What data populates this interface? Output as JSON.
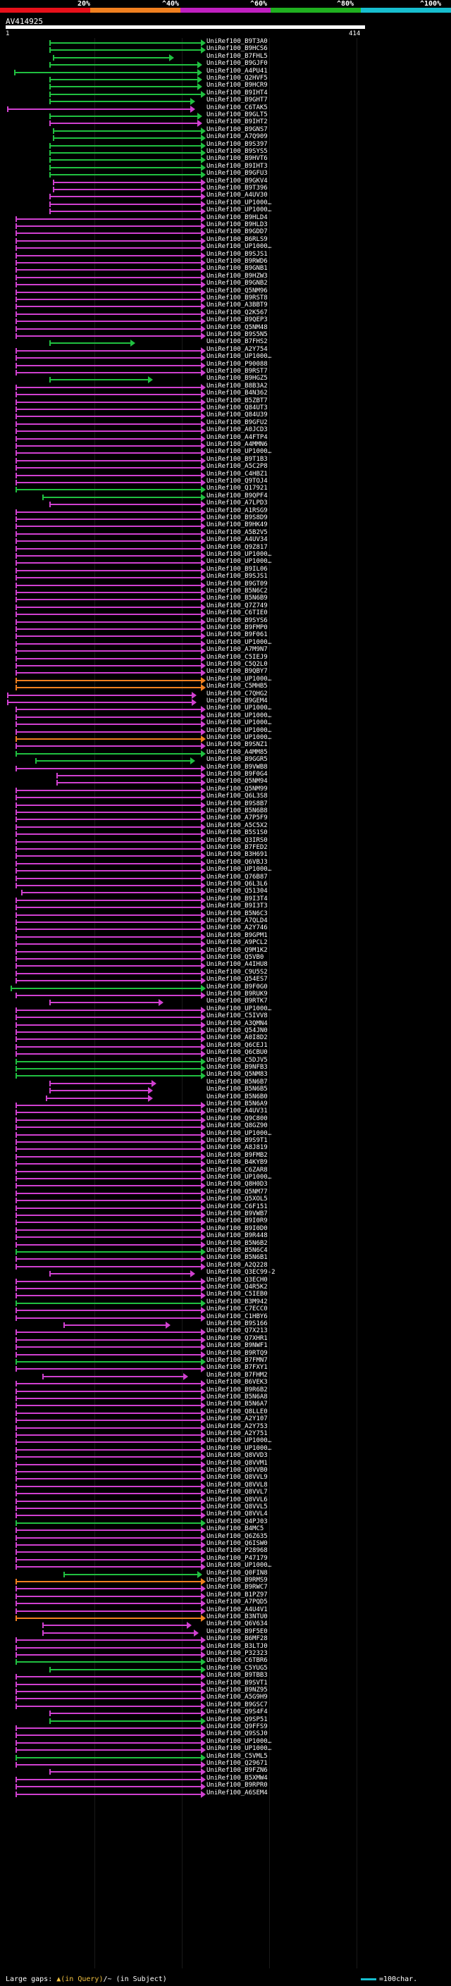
{
  "legend": {
    "labels": [
      "20%",
      "^40%",
      "^60%",
      "^80%",
      "^100%"
    ],
    "colors": [
      "#e8101a",
      "#f08020",
      "#c020c0",
      "#20b020",
      "#17becf"
    ]
  },
  "query": {
    "name": "AV414925",
    "start": "1",
    "end": "414"
  },
  "footer": {
    "left_prefix": "Large gaps: ",
    "query_gap": "▲(in Query)",
    "separator": "/",
    "subject_gap": "~ (in Subject)",
    "right": "=100char."
  },
  "hits": [
    {
      "label": "UniRef100_B9T3A0",
      "color": "#20c040"
    },
    {
      "label": "UniRef100_B9HCS6",
      "color": "#20c040"
    },
    {
      "label": "UniRef100_B7FHL5",
      "color": "#20c040"
    },
    {
      "label": "UniRef100_B9GJF0",
      "color": "#20c040"
    },
    {
      "label": "UniRef100_A4PU41",
      "color": "#20c040"
    },
    {
      "label": "UniRef100_Q2HVF5",
      "color": "#20c040"
    },
    {
      "label": "UniRef100_B9HCR9",
      "color": "#20c040"
    },
    {
      "label": "UniRef100_B9IHT4",
      "color": "#20c040"
    },
    {
      "label": "UniRef100_B9GHT7",
      "color": "#20c040"
    },
    {
      "label": "UniRef100_C6TAK5",
      "color": "#d040d0"
    },
    {
      "label": "UniRef100_B9GLT5",
      "color": "#20c040"
    },
    {
      "label": "UniRef100_B9IHT2",
      "color": "#d040d0"
    },
    {
      "label": "UniRef100_B9GNS7",
      "color": "#20c040"
    },
    {
      "label": "UniRef100_A7Q909",
      "color": "#20c040"
    },
    {
      "label": "UniRef100_B9S397",
      "color": "#20c040"
    },
    {
      "label": "UniRef100_B9SYS5",
      "color": "#20c040"
    },
    {
      "label": "UniRef100_B9HVT6",
      "color": "#20c040"
    },
    {
      "label": "UniRef100_B9IHT3",
      "color": "#20c040"
    },
    {
      "label": "UniRef100_B9GFU3",
      "color": "#20c040"
    },
    {
      "label": "UniRef100_B9GKV4",
      "color": "#d040d0"
    },
    {
      "label": "UniRef100_B9T396",
      "color": "#d040d0"
    },
    {
      "label": "UniRef100_A4UV30",
      "color": "#d040d0"
    },
    {
      "label": "UniRef100_UP1000…",
      "color": "#d040d0"
    },
    {
      "label": "UniRef100_UP1000…",
      "color": "#d040d0"
    },
    {
      "label": "UniRef100_B9HLD4",
      "color": "#d040d0"
    },
    {
      "label": "UniRef100_B9HLD3",
      "color": "#d040d0"
    },
    {
      "label": "UniRef100_B9GDD7",
      "color": "#d040d0"
    },
    {
      "label": "UniRef100_B6RLS9",
      "color": "#d040d0"
    },
    {
      "label": "UniRef100_UP1000…",
      "color": "#d040d0"
    },
    {
      "label": "UniRef100_B9SJS1",
      "color": "#d040d0"
    },
    {
      "label": "UniRef100_B9RWD6",
      "color": "#d040d0"
    },
    {
      "label": "UniRef100_B9GNB1",
      "color": "#d040d0"
    },
    {
      "label": "UniRef100_B9HZW3",
      "color": "#d040d0"
    },
    {
      "label": "UniRef100_B9GNB2",
      "color": "#d040d0"
    },
    {
      "label": "UniRef100_Q5NM96",
      "color": "#d040d0"
    },
    {
      "label": "UniRef100_B9RST8",
      "color": "#d040d0"
    },
    {
      "label": "UniRef100_A3BBT9",
      "color": "#d040d0"
    },
    {
      "label": "UniRef100_Q2K567",
      "color": "#d040d0"
    },
    {
      "label": "UniRef100_B9QEP3",
      "color": "#d040d0"
    },
    {
      "label": "UniRef100_Q5NM48",
      "color": "#d040d0"
    },
    {
      "label": "UniRef100_B9S5N5",
      "color": "#d040d0"
    },
    {
      "label": "UniRef100_B7FHS2",
      "color": "#20c040"
    },
    {
      "label": "UniRef100_A2Y754",
      "color": "#d040d0"
    },
    {
      "label": "UniRef100_UP1000…",
      "color": "#d040d0"
    },
    {
      "label": "UniRef100_P90088",
      "color": "#d040d0"
    },
    {
      "label": "UniRef100_B9RST7",
      "color": "#d040d0"
    },
    {
      "label": "UniRef100_B9HGZ5",
      "color": "#20c040"
    },
    {
      "label": "UniRef100_B8B3A2",
      "color": "#d040d0"
    },
    {
      "label": "UniRef100_B4N362",
      "color": "#d040d0"
    },
    {
      "label": "UniRef100_B5ZBT7",
      "color": "#d040d0"
    },
    {
      "label": "UniRef100_Q84UT3",
      "color": "#d040d0"
    },
    {
      "label": "UniRef100_Q84U39",
      "color": "#d040d0"
    },
    {
      "label": "UniRef100_B9GFU2",
      "color": "#d040d0"
    },
    {
      "label": "UniRef100_A0JCD3",
      "color": "#d040d0"
    },
    {
      "label": "UniRef100_A4FTP4",
      "color": "#d040d0"
    },
    {
      "label": "UniRef100_A4MMN6",
      "color": "#d040d0"
    },
    {
      "label": "UniRef100_UP1000…",
      "color": "#d040d0"
    },
    {
      "label": "UniRef100_B9T1B3",
      "color": "#d040d0"
    },
    {
      "label": "UniRef100_A5C2P8",
      "color": "#d040d0"
    },
    {
      "label": "UniRef100_C4HBZ1",
      "color": "#d040d0"
    },
    {
      "label": "UniRef100_Q9TOJ4",
      "color": "#d040d0"
    },
    {
      "label": "UniRef100_Q17921",
      "color": "#20c040"
    },
    {
      "label": "UniRef100_B9QPF4",
      "color": "#20c040"
    },
    {
      "label": "UniRef100_A7LPD3",
      "color": "#d040d0"
    },
    {
      "label": "UniRef100_A1RSG9",
      "color": "#d040d0"
    },
    {
      "label": "UniRef100_B9S8D9",
      "color": "#d040d0"
    },
    {
      "label": "UniRef100_B9HK49",
      "color": "#d040d0"
    },
    {
      "label": "UniRef100_A5B2V5",
      "color": "#d040d0"
    },
    {
      "label": "UniRef100_A4UV34",
      "color": "#d040d0"
    },
    {
      "label": "UniRef100_Q9Z817",
      "color": "#d040d0"
    },
    {
      "label": "UniRef100_UP1000…",
      "color": "#d040d0"
    },
    {
      "label": "UniRef100_UP1000…",
      "color": "#d040d0"
    },
    {
      "label": "UniRef100_B9IL06",
      "color": "#d040d0"
    },
    {
      "label": "UniRef100_B9SJS1",
      "color": "#d040d0"
    },
    {
      "label": "UniRef100_B9GT09",
      "color": "#d040d0"
    },
    {
      "label": "UniRef100_B5N6C2",
      "color": "#d040d0"
    },
    {
      "label": "UniRef100_B5N6B9",
      "color": "#d040d0"
    },
    {
      "label": "UniRef100_Q7Z749",
      "color": "#d040d0"
    },
    {
      "label": "UniRef100_C6TIE0",
      "color": "#d040d0"
    },
    {
      "label": "UniRef100_B9SYS6",
      "color": "#d040d0"
    },
    {
      "label": "UniRef100_B9FMP0",
      "color": "#d040d0"
    },
    {
      "label": "UniRef100_B9F061",
      "color": "#d040d0"
    },
    {
      "label": "UniRef100_UP1000…",
      "color": "#d040d0"
    },
    {
      "label": "UniRef100_A7M9N7",
      "color": "#d040d0"
    },
    {
      "label": "UniRef100_C5IEJ9",
      "color": "#d040d0"
    },
    {
      "label": "UniRef100_C5Q2L0",
      "color": "#d040d0"
    },
    {
      "label": "UniRef100_B9QBY7",
      "color": "#d040d0"
    },
    {
      "label": "UniRef100_UP1000…",
      "color": "#f08020"
    },
    {
      "label": "UniRef100_C5MHB5",
      "color": "#f08020"
    },
    {
      "label": "UniRef100_C7QHG2",
      "color": "#d040d0"
    },
    {
      "label": "UniRef100_B9GEM4",
      "color": "#d040d0"
    },
    {
      "label": "UniRef100_UP1000…",
      "color": "#d040d0"
    },
    {
      "label": "UniRef100_UP1000…",
      "color": "#d040d0"
    },
    {
      "label": "UniRef100_UP1000…",
      "color": "#d040d0"
    },
    {
      "label": "UniRef100_UP1000…",
      "color": "#d040d0"
    },
    {
      "label": "UniRef100_UP1000…",
      "color": "#f08020"
    },
    {
      "label": "UniRef100_B9SNZ1",
      "color": "#d040d0"
    },
    {
      "label": "UniRef100_A4MM85",
      "color": "#20c040"
    },
    {
      "label": "UniRef100_B9GGR5",
      "color": "#20c040"
    },
    {
      "label": "UniRef100_B9VWB8",
      "color": "#d040d0"
    },
    {
      "label": "UniRef100_B9F0G4",
      "color": "#d040d0"
    },
    {
      "label": "UniRef100_Q5NM94",
      "color": "#d040d0"
    },
    {
      "label": "UniRef100_Q5NM99",
      "color": "#d040d0"
    },
    {
      "label": "UniRef100_Q6L3S8",
      "color": "#d040d0"
    },
    {
      "label": "UniRef100_B9S8B7",
      "color": "#d040d0"
    },
    {
      "label": "UniRef100_B5N6B8",
      "color": "#d040d0"
    },
    {
      "label": "UniRef100_A7P5F9",
      "color": "#d040d0"
    },
    {
      "label": "UniRef100_A5C5X2",
      "color": "#d040d0"
    },
    {
      "label": "UniRef100_B5S1S0",
      "color": "#d040d0"
    },
    {
      "label": "UniRef100_Q3IRS0",
      "color": "#d040d0"
    },
    {
      "label": "UniRef100_B7FED2",
      "color": "#d040d0"
    },
    {
      "label": "UniRef100_B3H691",
      "color": "#d040d0"
    },
    {
      "label": "UniRef100_Q6VBJ3",
      "color": "#d040d0"
    },
    {
      "label": "UniRef100_UP1000…",
      "color": "#d040d0"
    },
    {
      "label": "UniRef100_Q76B87",
      "color": "#d040d0"
    },
    {
      "label": "UniRef100_Q6L3L6",
      "color": "#d040d0"
    },
    {
      "label": "UniRef100_Q51304",
      "color": "#d040d0"
    },
    {
      "label": "UniRef100_B9I3T4",
      "color": "#d040d0"
    },
    {
      "label": "UniRef100_B9I3T3",
      "color": "#d040d0"
    },
    {
      "label": "UniRef100_B5N6C3",
      "color": "#d040d0"
    },
    {
      "label": "UniRef100_A7QLD4",
      "color": "#d040d0"
    },
    {
      "label": "UniRef100_A2Y746",
      "color": "#d040d0"
    },
    {
      "label": "UniRef100_B9GPM1",
      "color": "#d040d0"
    },
    {
      "label": "UniRef100_A9PCL2",
      "color": "#d040d0"
    },
    {
      "label": "UniRef100_Q9M1K2",
      "color": "#d040d0"
    },
    {
      "label": "UniRef100_Q5VB0",
      "color": "#d040d0"
    },
    {
      "label": "UniRef100_A4IHU8",
      "color": "#d040d0"
    },
    {
      "label": "UniRef100_C9U5S2",
      "color": "#d040d0"
    },
    {
      "label": "UniRef100_Q54ES7",
      "color": "#d040d0"
    },
    {
      "label": "UniRef100_B9F0G0",
      "color": "#20c040"
    },
    {
      "label": "UniRef100_B9RUK9",
      "color": "#d040d0"
    },
    {
      "label": "UniRef100_B9RTK7",
      "color": "#d040d0"
    },
    {
      "label": "UniRef100_UP1000…",
      "color": "#d040d0"
    },
    {
      "label": "UniRef100_C5IVV8",
      "color": "#d040d0"
    },
    {
      "label": "UniRef100_A3QMN4",
      "color": "#d040d0"
    },
    {
      "label": "UniRef100_Q54JN0",
      "color": "#d040d0"
    },
    {
      "label": "UniRef100_A0I8D2",
      "color": "#d040d0"
    },
    {
      "label": "UniRef100_Q6CEJ1",
      "color": "#d040d0"
    },
    {
      "label": "UniRef100_Q6CBU0",
      "color": "#d040d0"
    },
    {
      "label": "UniRef100_C5DJV5",
      "color": "#20c040"
    },
    {
      "label": "UniRef100_B9NFB3",
      "color": "#20c040"
    },
    {
      "label": "UniRef100_Q5NM83",
      "color": "#20c040"
    },
    {
      "label": "UniRef100_B5N6B7",
      "color": "#d040d0"
    },
    {
      "label": "UniRef100_B5N6B5",
      "color": "#d040d0"
    },
    {
      "label": "UniRef100_B5N6B0",
      "color": "#d040d0"
    },
    {
      "label": "UniRef100_B5N6A9",
      "color": "#d040d0"
    },
    {
      "label": "UniRef100_A4UV31",
      "color": "#d040d0"
    },
    {
      "label": "UniRef100_Q9C800",
      "color": "#d040d0"
    },
    {
      "label": "UniRef100_Q8GZ90",
      "color": "#d040d0"
    },
    {
      "label": "UniRef100_UP1000…",
      "color": "#d040d0"
    },
    {
      "label": "UniRef100_B9S9T1",
      "color": "#d040d0"
    },
    {
      "label": "UniRef100_A8J819",
      "color": "#d040d0"
    },
    {
      "label": "UniRef100_B9FMB2",
      "color": "#d040d0"
    },
    {
      "label": "UniRef100_B4KYB9",
      "color": "#d040d0"
    },
    {
      "label": "UniRef100_C6ZAR8",
      "color": "#d040d0"
    },
    {
      "label": "UniRef100_UP1000…",
      "color": "#d040d0"
    },
    {
      "label": "UniRef100_Q8H0D3",
      "color": "#d040d0"
    },
    {
      "label": "UniRef100_Q5NM77",
      "color": "#d040d0"
    },
    {
      "label": "UniRef100_Q5XOL5",
      "color": "#d040d0"
    },
    {
      "label": "UniRef100_C6F151",
      "color": "#d040d0"
    },
    {
      "label": "UniRef100_B9VWB7",
      "color": "#d040d0"
    },
    {
      "label": "UniRef100_B9I0R9",
      "color": "#d040d0"
    },
    {
      "label": "UniRef100_B9I0D0",
      "color": "#d040d0"
    },
    {
      "label": "UniRef100_B9R448",
      "color": "#d040d0"
    },
    {
      "label": "UniRef100_B5N6B2",
      "color": "#d040d0"
    },
    {
      "label": "UniRef100_B5N6C4",
      "color": "#20c040"
    },
    {
      "label": "UniRef100_B5N6B1",
      "color": "#d040d0"
    },
    {
      "label": "UniRef100_A2Q228",
      "color": "#d040d0"
    },
    {
      "label": "UniRef100_Q3EC99-2",
      "color": "#d040d0"
    },
    {
      "label": "UniRef100_Q3ECH0",
      "color": "#d040d0"
    },
    {
      "label": "UniRef100_Q4R5K2",
      "color": "#d040d0"
    },
    {
      "label": "UniRef100_C5IEB0",
      "color": "#d040d0"
    },
    {
      "label": "UniRef100_B3M942",
      "color": "#20c040"
    },
    {
      "label": "UniRef100_C7ECC0",
      "color": "#d040d0"
    },
    {
      "label": "UniRef100_C1HBY6",
      "color": "#d040d0"
    },
    {
      "label": "UniRef100_B9S166",
      "color": "#d040d0"
    },
    {
      "label": "UniRef100_Q7X213",
      "color": "#d040d0"
    },
    {
      "label": "UniRef100_Q7XHR1",
      "color": "#d040d0"
    },
    {
      "label": "UniRef100_B9NWF1",
      "color": "#d040d0"
    },
    {
      "label": "UniRef100_B9RTQ9",
      "color": "#d040d0"
    },
    {
      "label": "UniRef100_B7FMN7",
      "color": "#20c040"
    },
    {
      "label": "UniRef100_B7FXY1",
      "color": "#d040d0"
    },
    {
      "label": "UniRef100_B7FHM2",
      "color": "#d040d0"
    },
    {
      "label": "UniRef100_B6VEK3",
      "color": "#d040d0"
    },
    {
      "label": "UniRef100_B9R6B2",
      "color": "#d040d0"
    },
    {
      "label": "UniRef100_B5N6A8",
      "color": "#d040d0"
    },
    {
      "label": "UniRef100_B5N6A7",
      "color": "#d040d0"
    },
    {
      "label": "UniRef100_Q8LLE0",
      "color": "#d040d0"
    },
    {
      "label": "UniRef100_A2Y107",
      "color": "#d040d0"
    },
    {
      "label": "UniRef100_A2Y753",
      "color": "#d040d0"
    },
    {
      "label": "UniRef100_A2Y751",
      "color": "#d040d0"
    },
    {
      "label": "UniRef100_UP1000…",
      "color": "#d040d0"
    },
    {
      "label": "UniRef100_UP1000…",
      "color": "#d040d0"
    },
    {
      "label": "UniRef100_Q8VVD3",
      "color": "#d040d0"
    },
    {
      "label": "UniRef100_Q8VVM1",
      "color": "#d040d0"
    },
    {
      "label": "UniRef100_Q8VVB0",
      "color": "#d040d0"
    },
    {
      "label": "UniRef100_Q8VVL9",
      "color": "#d040d0"
    },
    {
      "label": "UniRef100_Q8VVL8",
      "color": "#d040d0"
    },
    {
      "label": "UniRef100_Q8VVL7",
      "color": "#d040d0"
    },
    {
      "label": "UniRef100_Q8VVL6",
      "color": "#d040d0"
    },
    {
      "label": "UniRef100_Q8VVL5",
      "color": "#d040d0"
    },
    {
      "label": "UniRef100_Q8VVL4",
      "color": "#d040d0"
    },
    {
      "label": "UniRef100_Q4PJ03",
      "color": "#20c040"
    },
    {
      "label": "UniRef100_B4MC5",
      "color": "#d040d0"
    },
    {
      "label": "UniRef100_Q6Z635",
      "color": "#d040d0"
    },
    {
      "label": "UniRef100_Q6ISW0",
      "color": "#d040d0"
    },
    {
      "label": "UniRef100_P28968",
      "color": "#d040d0"
    },
    {
      "label": "UniRef100_P47179",
      "color": "#d040d0"
    },
    {
      "label": "UniRef100_UP1000…",
      "color": "#d040d0"
    },
    {
      "label": "UniRef100_Q0FIN8",
      "color": "#20c040"
    },
    {
      "label": "UniRef100_B9RMS9",
      "color": "#f08020"
    },
    {
      "label": "UniRef100_B9RWC7",
      "color": "#d040d0"
    },
    {
      "label": "UniRef100_B1PZ97",
      "color": "#d040d0"
    },
    {
      "label": "UniRef100_A7PQD5",
      "color": "#d040d0"
    },
    {
      "label": "UniRef100_A4U4V1",
      "color": "#d040d0"
    },
    {
      "label": "UniRef100_B3NTU0",
      "color": "#f08020"
    },
    {
      "label": "UniRef100_Q6V634",
      "color": "#d040d0"
    },
    {
      "label": "UniRef100_B9F5E0",
      "color": "#d040d0"
    },
    {
      "label": "UniRef100_B6MF28",
      "color": "#d040d0"
    },
    {
      "label": "UniRef100_B3LTJ0",
      "color": "#d040d0"
    },
    {
      "label": "UniRef100_P32323",
      "color": "#d040d0"
    },
    {
      "label": "UniRef100_C6TBR6",
      "color": "#20c040"
    },
    {
      "label": "UniRef100_C5YUG5",
      "color": "#20c040"
    },
    {
      "label": "UniRef100_B9TBB3",
      "color": "#d040d0"
    },
    {
      "label": "UniRef100_B9SVT1",
      "color": "#d040d0"
    },
    {
      "label": "UniRef100_B9NZ95",
      "color": "#d040d0"
    },
    {
      "label": "UniRef100_A5G9H9",
      "color": "#d040d0"
    },
    {
      "label": "UniRef100_B9GSC7",
      "color": "#d040d0"
    },
    {
      "label": "UniRef100_Q9S4F4",
      "color": "#d040d0"
    },
    {
      "label": "UniRef100_Q9SP51",
      "color": "#20c040"
    },
    {
      "label": "UniRef100_Q9FFS9",
      "color": "#d040d0"
    },
    {
      "label": "UniRef100_Q9SSJ0",
      "color": "#d040d0"
    },
    {
      "label": "UniRef100_UP1000…",
      "color": "#d040d0"
    },
    {
      "label": "UniRef100_UP1000…",
      "color": "#d040d0"
    },
    {
      "label": "UniRef100_C5VML5",
      "color": "#20c040"
    },
    {
      "label": "UniRef100_Q29671",
      "color": "#d040d0"
    },
    {
      "label": "UniRef100_B9FZN6",
      "color": "#d040d0"
    },
    {
      "label": "UniRef100_B5XMW4",
      "color": "#d040d0"
    },
    {
      "label": "UniRef100_B9RPR0",
      "color": "#d040d0"
    },
    {
      "label": "UniRef100_A6SEM4",
      "color": "#d040d0"
    }
  ]
}
